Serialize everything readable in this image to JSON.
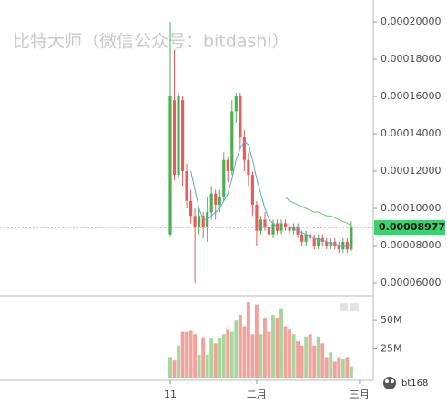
{
  "chart_data": {
    "type": "candlestick",
    "watermark": "比特大师（微信公众号：bitdashi）",
    "logo_text": "bt168",
    "categories": [
      "11",
      null,
      null,
      null,
      null,
      null,
      null,
      null,
      null,
      null,
      null,
      null,
      null,
      null,
      null,
      null,
      null,
      null,
      null,
      null,
      null,
      "二月",
      null,
      null,
      null,
      null,
      null,
      null,
      null,
      null,
      null,
      null,
      null,
      null,
      null,
      null,
      null,
      null,
      null,
      null,
      null,
      null,
      null,
      null,
      null,
      null,
      "三月"
    ],
    "open": [
      8.6e-05,
      0.000158,
      0.000118,
      0.000158,
      0.00012,
      0.000104,
      9.6e-05,
      9e-05,
      9.6e-05,
      9e-05,
      9.8e-05,
      0.000108,
      0.000102,
      0.000106,
      0.000126,
      0.00012,
      0.000152,
      0.00016,
      0.000138,
      0.000126,
      0.000118,
      0.000102,
      8.8e-05,
      9.4e-05,
      9e-05,
      8.6e-05,
      9.2e-05,
      8.8e-05,
      9.2e-05,
      9e-05,
      8.8e-05,
      9e-05,
      8.6e-05,
      8.2e-05,
      8.6e-05,
      8.4e-05,
      8e-05,
      8.4e-05,
      8.2e-05,
      8e-05,
      8.2e-05,
      8e-05,
      7.8e-05,
      8.2e-05,
      7.8e-05,
      null,
      null
    ],
    "high": [
      0.0002,
      0.000185,
      0.000162,
      0.00016,
      0.000124,
      0.00011,
      0.0001,
      0.0001,
      9.8e-05,
      0.000106,
      0.000112,
      0.00011,
      0.00011,
      0.00013,
      0.000128,
      0.000158,
      0.000162,
      0.000162,
      0.000142,
      0.00013,
      0.00012,
      0.000104,
      9.6e-05,
      9.8e-05,
      9.2e-05,
      9.4e-05,
      9.4e-05,
      9.4e-05,
      9.4e-05,
      9.2e-05,
      9.2e-05,
      9.2e-05,
      8.8e-05,
      8.8e-05,
      8.8e-05,
      8.6e-05,
      8.6e-05,
      8.6e-05,
      8.4e-05,
      8.4e-05,
      8.4e-05,
      8.2e-05,
      8.4e-05,
      8.4e-05,
      9.3e-05,
      null,
      null
    ],
    "low": [
      8.5e-05,
      0.000115,
      0.000116,
      0.000112,
      0.0001,
      9.2e-05,
      6e-05,
      8.6e-05,
      8.4e-05,
      8.2e-05,
      9.4e-05,
      9.4e-05,
      9.8e-05,
      0.000104,
      0.000114,
      0.000118,
      0.000146,
      0.000132,
      0.00012,
      0.000112,
      9.6e-05,
      8e-05,
      8.6e-05,
      8.8e-05,
      8.4e-05,
      8.4e-05,
      8.6e-05,
      8.6e-05,
      8.8e-05,
      8.6e-05,
      8.6e-05,
      8.4e-05,
      8e-05,
      8e-05,
      8.2e-05,
      7.8e-05,
      7.8e-05,
      8e-05,
      7.8e-05,
      7.8e-05,
      7.8e-05,
      7.6e-05,
      7.6e-05,
      7.6e-05,
      7.7e-05,
      null,
      null
    ],
    "close": [
      0.00016,
      0.000118,
      0.00016,
      0.00012,
      0.000104,
      9.6e-05,
      9e-05,
      9.6e-05,
      9e-05,
      9.8e-05,
      0.000108,
      0.000102,
      0.000106,
      0.000126,
      0.00012,
      0.000152,
      0.00016,
      0.000138,
      0.000126,
      0.000118,
      0.000102,
      8.8e-05,
      9.4e-05,
      9e-05,
      8.6e-05,
      9.2e-05,
      8.8e-05,
      9.2e-05,
      9e-05,
      8.8e-05,
      9e-05,
      8.6e-05,
      8.2e-05,
      8.6e-05,
      8.4e-05,
      8e-05,
      8.4e-05,
      8.2e-05,
      8e-05,
      8.2e-05,
      8e-05,
      7.8e-05,
      8.2e-05,
      7.8e-05,
      8.977e-05,
      null,
      null
    ],
    "volume": [
      18,
      15,
      28,
      40,
      40,
      41,
      38,
      20,
      35,
      20,
      34,
      30,
      35,
      38,
      42,
      40,
      50,
      55,
      45,
      66,
      38,
      64,
      38,
      52,
      40,
      55,
      52,
      60,
      45,
      42,
      38,
      32,
      28,
      36,
      38,
      28,
      36,
      30,
      18,
      22,
      14,
      18,
      16,
      18,
      10,
      null,
      null
    ],
    "moving_averages": [
      {
        "color": "#5aa9c9",
        "values": [
          null,
          null,
          null,
          null,
          null,
          0.00012,
          0.00011,
          0.0001,
          9.4e-05,
          9.4e-05,
          9.6e-05,
          9.8e-05,
          0.0001,
          0.000104,
          0.000108,
          0.000116,
          0.000126,
          0.000132,
          0.000136,
          0.000134,
          0.000126,
          0.000116,
          0.000108,
          0.0001,
          9.4e-05,
          9.2e-05,
          9e-05,
          9e-05,
          9e-05,
          9e-05,
          8.9e-05,
          8.8e-05,
          8.7e-05,
          8.6e-05,
          8.5e-05,
          8.4e-05,
          8.3e-05,
          8.3e-05,
          8.2e-05,
          8.1e-05,
          8.1e-05,
          8e-05,
          8e-05,
          8e-05,
          8.1e-05,
          null,
          null
        ]
      },
      {
        "color": "#6cc36c",
        "values": [
          null,
          null,
          null,
          null,
          null,
          null,
          null,
          null,
          null,
          null,
          null,
          null,
          null,
          null,
          null,
          null,
          null,
          null,
          null,
          null,
          null,
          null,
          null,
          null,
          null,
          null,
          null,
          null,
          0.000106,
          0.000104,
          0.000103,
          0.000102,
          0.000101,
          0.0001,
          9.9e-05,
          9.8e-05,
          9.8e-05,
          9.7e-05,
          9.6e-05,
          9.6e-05,
          9.5e-05,
          9.4e-05,
          9.3e-05,
          9.2e-05,
          9.1e-05,
          null,
          null
        ]
      }
    ],
    "up_color": "#4caf50",
    "down_color": "#e65b5b",
    "volume_up_color": "#a8d59c",
    "volume_down_color": "#f2a19b",
    "last_price": 8.977e-05,
    "last_price_color": "#3bd16f",
    "ylim": [
      5.32e-05,
      0.0002117
    ],
    "yticks": [
      {
        "value": 6e-05,
        "label": "0.00006000"
      },
      {
        "value": 8e-05,
        "label": "0.00008000"
      },
      {
        "value": 0.0001,
        "label": "0.00010000"
      },
      {
        "value": 0.00012,
        "label": "0.00012000"
      },
      {
        "value": 0.00014,
        "label": "0.00014000"
      },
      {
        "value": 0.00016,
        "label": "0.00016000"
      },
      {
        "value": 0.00018,
        "label": "0.00018000"
      },
      {
        "value": 0.0002,
        "label": "0.00020000"
      }
    ],
    "volume_ylim": [
      0,
      70
    ],
    "volume_yticks": [
      {
        "value": 25,
        "label": "25M"
      },
      {
        "value": 50,
        "label": "50M"
      }
    ]
  }
}
